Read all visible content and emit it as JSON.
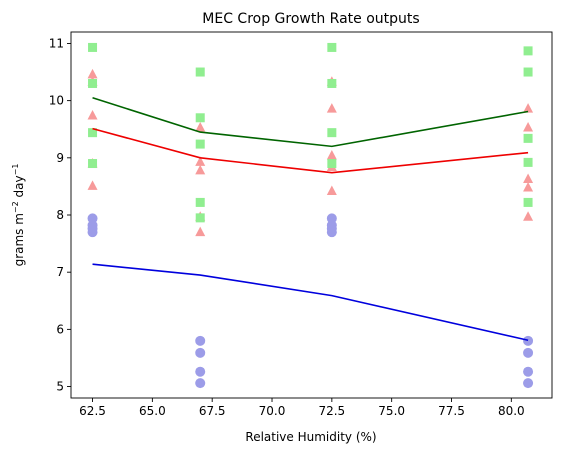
{
  "chart_data": {
    "type": "scatter",
    "title": "MEC Crop Growth Rate outputs",
    "xlabel": "Relative Humidity (%)",
    "ylabel_main": "grams m",
    "ylabel_sup1": "−2",
    "ylabel_mid": " day",
    "ylabel_sup2": "−1",
    "xlim": [
      61.6,
      81.7
    ],
    "ylim": [
      4.8,
      11.2
    ],
    "xticks": [
      62.5,
      65.0,
      67.5,
      70.0,
      72.5,
      75.0,
      77.5,
      80.0
    ],
    "xtick_labels": [
      "62.5",
      "65.0",
      "67.5",
      "70.0",
      "72.5",
      "75.0",
      "77.5",
      "80.0"
    ],
    "yticks": [
      5,
      6,
      7,
      8,
      9,
      10,
      11
    ],
    "ytick_labels": [
      "5",
      "6",
      "7",
      "8",
      "9",
      "10",
      "11"
    ],
    "grid": false,
    "scatter": [
      {
        "marker": "circle",
        "color": "#9c9ce8",
        "points": [
          [
            62.5,
            7.94
          ],
          [
            62.5,
            7.82
          ],
          [
            62.5,
            7.76
          ],
          [
            62.5,
            7.7
          ],
          [
            67.0,
            5.8
          ],
          [
            67.0,
            5.59
          ],
          [
            67.0,
            5.26
          ],
          [
            67.0,
            5.06
          ],
          [
            72.5,
            7.94
          ],
          [
            72.5,
            7.82
          ],
          [
            72.5,
            7.76
          ],
          [
            72.5,
            7.7
          ],
          [
            80.7,
            5.8
          ],
          [
            80.7,
            5.59
          ],
          [
            80.7,
            5.26
          ],
          [
            80.7,
            5.06
          ]
        ]
      },
      {
        "marker": "triangle",
        "color": "#f79a9a",
        "points": [
          [
            62.5,
            10.46
          ],
          [
            62.5,
            10.33
          ],
          [
            62.5,
            9.74
          ],
          [
            62.5,
            8.9
          ],
          [
            62.5,
            8.51
          ],
          [
            67.0,
            9.53
          ],
          [
            67.0,
            8.93
          ],
          [
            67.0,
            8.78
          ],
          [
            67.0,
            7.97
          ],
          [
            67.0,
            7.7
          ],
          [
            72.5,
            10.33
          ],
          [
            72.5,
            9.86
          ],
          [
            72.5,
            9.04
          ],
          [
            72.5,
            8.84
          ],
          [
            72.5,
            8.42
          ],
          [
            80.7,
            9.86
          ],
          [
            80.7,
            9.53
          ],
          [
            80.7,
            8.63
          ],
          [
            80.7,
            8.48
          ],
          [
            80.7,
            7.97
          ]
        ]
      },
      {
        "marker": "square",
        "color": "#90ee90",
        "points": [
          [
            62.5,
            10.93
          ],
          [
            62.5,
            10.3
          ],
          [
            62.5,
            9.44
          ],
          [
            62.5,
            8.9
          ],
          [
            67.0,
            10.5
          ],
          [
            67.0,
            9.7
          ],
          [
            67.0,
            9.24
          ],
          [
            67.0,
            8.22
          ],
          [
            67.0,
            7.95
          ],
          [
            72.5,
            10.93
          ],
          [
            72.5,
            10.3
          ],
          [
            72.5,
            9.44
          ],
          [
            72.5,
            8.9
          ],
          [
            80.7,
            10.87
          ],
          [
            80.7,
            10.5
          ],
          [
            80.7,
            9.34
          ],
          [
            80.7,
            8.92
          ],
          [
            80.7,
            8.22
          ]
        ]
      }
    ],
    "lines": [
      {
        "color": "#0000dd",
        "x": [
          62.5,
          67.0,
          72.5,
          80.7
        ],
        "y": [
          7.14,
          6.95,
          6.59,
          5.81
        ]
      },
      {
        "color": "#ee0000",
        "x": [
          62.5,
          67.0,
          72.5,
          80.7
        ],
        "y": [
          9.51,
          9.0,
          8.74,
          9.09
        ]
      },
      {
        "color": "#006400",
        "x": [
          62.5,
          67.0,
          72.5,
          80.7
        ],
        "y": [
          10.05,
          9.45,
          9.2,
          9.81
        ]
      }
    ]
  }
}
